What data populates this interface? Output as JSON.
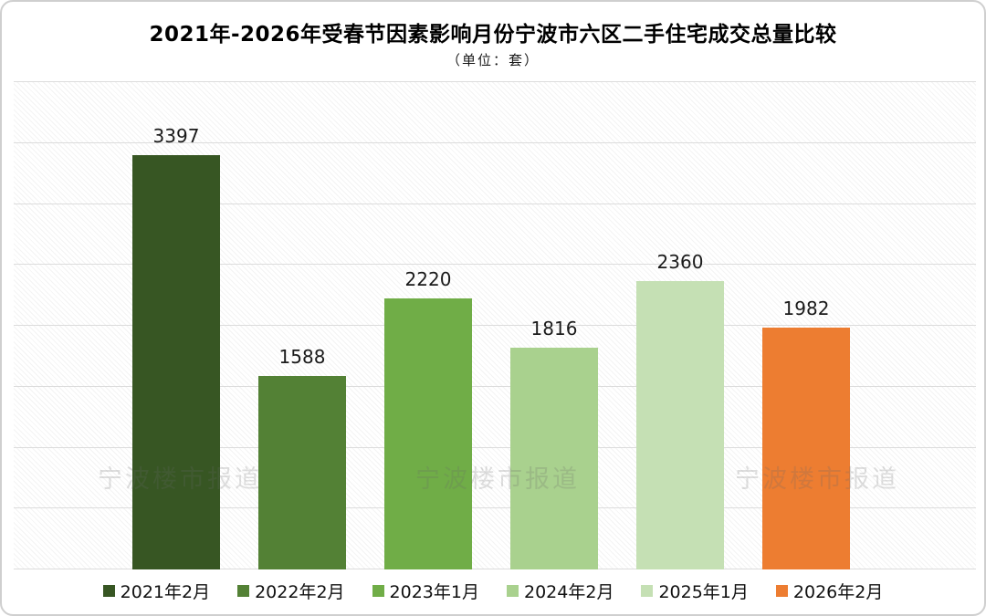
{
  "chart_data": {
    "type": "bar",
    "title": "2021年-2026年受春节因素影响月份宁波市六区二手住宅成交总量比较",
    "unit_label": "（单位：套）",
    "categories": [
      "2021年2月",
      "2022年2月",
      "2023年1月",
      "2024年2月",
      "2025年1月",
      "2026年2月"
    ],
    "values": [
      3397,
      1588,
      2220,
      1816,
      2360,
      1982
    ],
    "bar_colors": [
      "#375623",
      "#538135",
      "#70ad47",
      "#a9d18e",
      "#c5e0b4",
      "#ed7d31"
    ],
    "ylim": [
      0,
      4000
    ],
    "gridline_step": 500,
    "grid": true,
    "gridline_color": "#dcdcdc",
    "legend_position": "bottom",
    "data_labels": true,
    "watermark_text": "宁波楼市报道",
    "watermark_count": 3
  }
}
